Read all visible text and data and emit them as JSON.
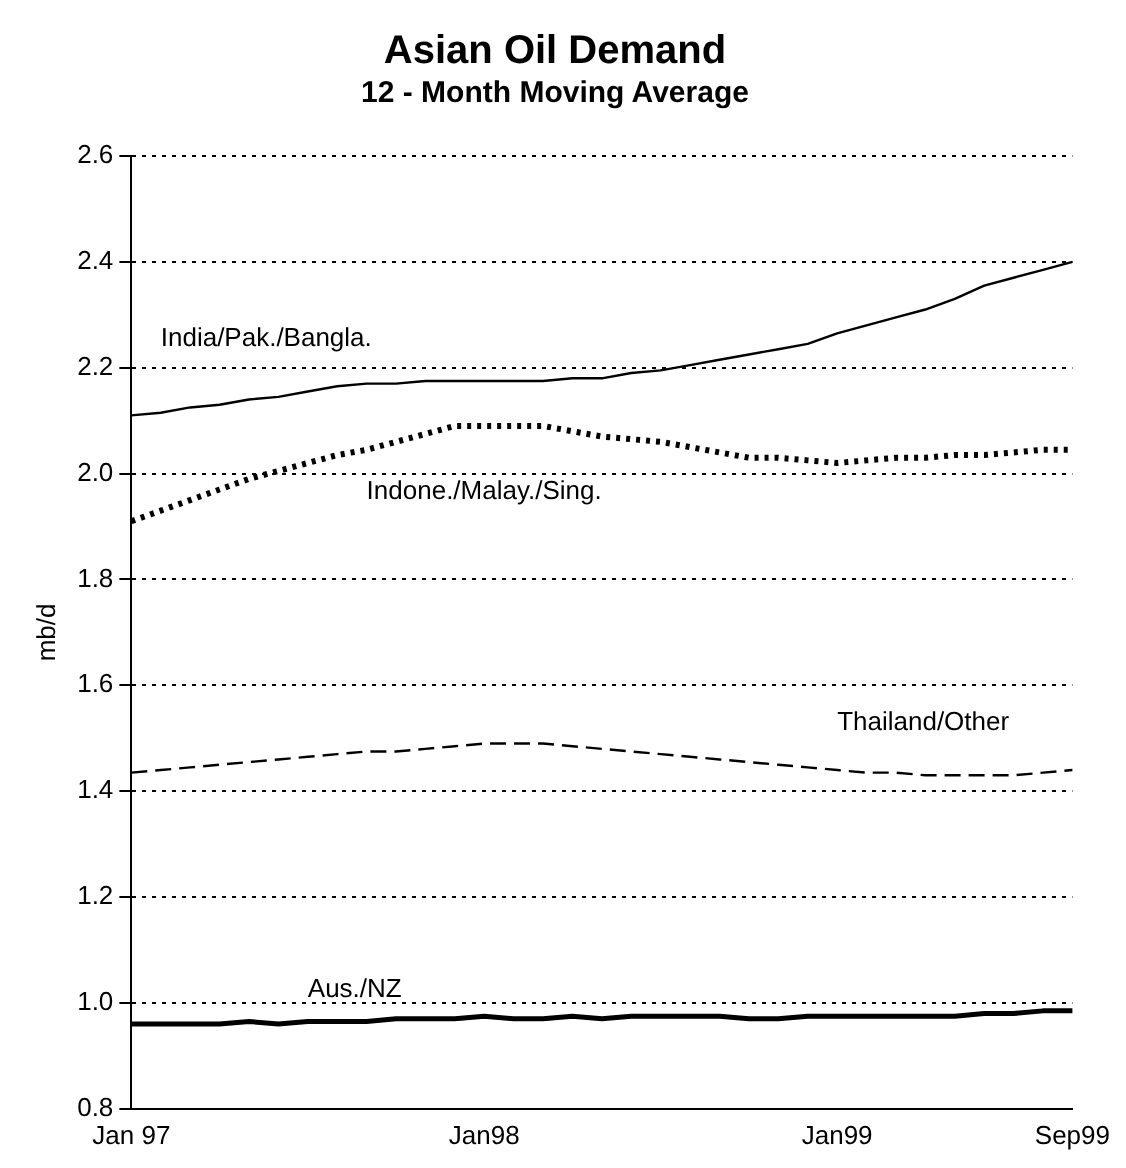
{
  "chart_data": {
    "type": "line",
    "title": "Asian Oil Demand",
    "subtitle": "12 - Month Moving Average",
    "ylabel": "mb/d",
    "categories": [
      "Jan 97",
      null,
      null,
      null,
      null,
      null,
      null,
      null,
      null,
      null,
      null,
      null,
      "Jan98",
      null,
      null,
      null,
      null,
      null,
      null,
      null,
      null,
      null,
      null,
      null,
      "Jan99",
      null,
      null,
      null,
      null,
      null,
      null,
      null,
      "Sep99"
    ],
    "series": [
      {
        "name": "India/Pak./Bangla.",
        "color": "#000000",
        "line_style": "solid",
        "values": [
          2.11,
          2.115,
          2.125,
          2.13,
          2.14,
          2.145,
          2.155,
          2.165,
          2.17,
          2.17,
          2.175,
          2.175,
          2.175,
          2.175,
          2.175,
          2.18,
          2.18,
          2.19,
          2.195,
          2.205,
          2.215,
          2.225,
          2.235,
          2.245,
          2.265,
          2.28,
          2.295,
          2.31,
          2.33,
          2.355,
          2.37,
          2.385,
          2.4
        ]
      },
      {
        "name": "Indone./Malay./Sing.",
        "color": "#000000",
        "line_style": "dotted",
        "values": [
          1.91,
          1.93,
          1.95,
          1.97,
          1.99,
          2.005,
          2.02,
          2.035,
          2.045,
          2.06,
          2.075,
          2.09,
          2.09,
          2.09,
          2.09,
          2.08,
          2.07,
          2.065,
          2.06,
          2.05,
          2.04,
          2.03,
          2.03,
          2.025,
          2.02,
          2.025,
          2.03,
          2.03,
          2.035,
          2.035,
          2.04,
          2.045,
          2.045
        ]
      },
      {
        "name": "Thailand/Other",
        "color": "#000000",
        "line_style": "dashed",
        "values": [
          1.435,
          1.44,
          1.445,
          1.45,
          1.455,
          1.46,
          1.465,
          1.47,
          1.475,
          1.475,
          1.48,
          1.485,
          1.49,
          1.49,
          1.49,
          1.485,
          1.48,
          1.475,
          1.47,
          1.465,
          1.46,
          1.455,
          1.45,
          1.445,
          1.44,
          1.435,
          1.435,
          1.43,
          1.43,
          1.43,
          1.43,
          1.435,
          1.44
        ]
      },
      {
        "name": "Aus./NZ",
        "color": "#000000",
        "line_style": "solid",
        "values": [
          0.96,
          0.96,
          0.96,
          0.96,
          0.965,
          0.96,
          0.965,
          0.965,
          0.965,
          0.97,
          0.97,
          0.97,
          0.975,
          0.97,
          0.97,
          0.975,
          0.97,
          0.975,
          0.975,
          0.975,
          0.975,
          0.97,
          0.97,
          0.975,
          0.975,
          0.975,
          0.975,
          0.975,
          0.975,
          0.98,
          0.98,
          0.985,
          0.985
        ]
      }
    ],
    "ylim": [
      0.8,
      2.6
    ],
    "yticks": [
      0.8,
      {
        "value": 1,
        "label": "1.0"
      },
      1.2,
      1.4,
      1.6,
      1.8,
      {
        "value": 2,
        "label": "2.0"
      },
      2.2,
      2.4,
      2.6
    ],
    "grid": "y",
    "legend": false,
    "marker": "none"
  }
}
